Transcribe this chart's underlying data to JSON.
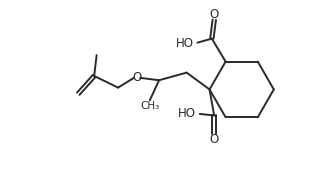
{
  "background_color": "#ffffff",
  "line_color": "#2a2a2a",
  "line_width": 1.4,
  "text_color": "#2a2a2a",
  "font_size": 8.5,
  "figsize": [
    3.12,
    1.85
  ],
  "dpi": 100,
  "xlim": [
    0,
    10
  ],
  "ylim": [
    0,
    6
  ]
}
